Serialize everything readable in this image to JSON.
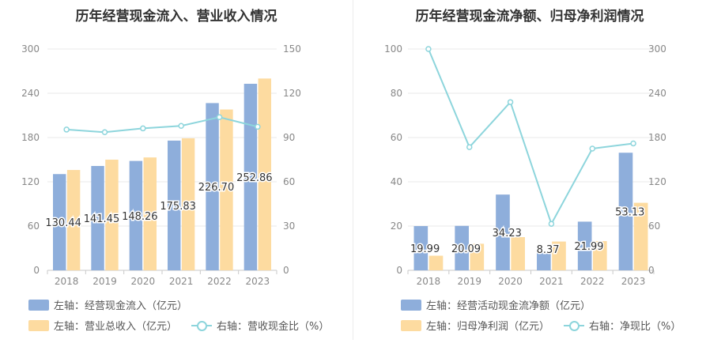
{
  "chart_data": [
    {
      "type": "bar",
      "title": "历年经营现金流入、营业收入情况",
      "categories": [
        "2018",
        "2019",
        "2020",
        "2021",
        "2022",
        "2023"
      ],
      "y_left": {
        "min": 0,
        "max": 300,
        "ticks": [
          0,
          60,
          120,
          180,
          240,
          300
        ]
      },
      "y_right": {
        "min": 0,
        "max": 150,
        "ticks": [
          0,
          30,
          60,
          90,
          120,
          150
        ]
      },
      "series": [
        {
          "name": "左轴：经营现金流入（亿元）",
          "type": "bar",
          "axis": "left",
          "color": "#8eaedb",
          "values": [
            130.44,
            141.45,
            148.26,
            175.83,
            226.7,
            252.86
          ],
          "labels": [
            "130.44",
            "141.45",
            "148.26",
            "175.83",
            "226.70",
            "252.86"
          ]
        },
        {
          "name": "左轴：营业总收入（亿元）",
          "type": "bar",
          "axis": "left",
          "color": "#fddba0",
          "values": [
            136,
            150,
            153,
            179,
            218,
            260
          ]
        },
        {
          "name": "右轴：营收现金比（%）",
          "type": "line",
          "axis": "right",
          "color": "#8dd5dc",
          "values": [
            95.4,
            93.6,
            96.2,
            97.9,
            103.8,
            97.3
          ]
        }
      ],
      "legend": {
        "rows": [
          [
            {
              "series": 0,
              "label": "左轴：经营现金流入（亿元）"
            }
          ],
          [
            {
              "series": 1,
              "label": "左轴：营业总收入（亿元）"
            },
            {
              "series": 2,
              "label": "右轴：营收现金比（%）"
            }
          ]
        ]
      },
      "grid": true
    },
    {
      "type": "bar",
      "title": "历年经营现金流净额、归母净利润情况",
      "categories": [
        "2018",
        "2019",
        "2020",
        "2021",
        "2022",
        "2023"
      ],
      "y_left": {
        "min": 0,
        "max": 100,
        "ticks": [
          0,
          20,
          40,
          60,
          80,
          100
        ]
      },
      "y_right": {
        "min": 0,
        "max": 300,
        "ticks": [
          0,
          60,
          120,
          180,
          240,
          300
        ]
      },
      "series": [
        {
          "name": "左轴：经营活动现金流净额（亿元）",
          "type": "bar",
          "axis": "left",
          "color": "#8eaedb",
          "values": [
            19.99,
            20.09,
            34.23,
            8.37,
            21.99,
            53.13
          ],
          "labels": [
            "19.99",
            "20.09",
            "34.23",
            "8.37",
            "21.99",
            "53.13"
          ]
        },
        {
          "name": "左轴：归母净利润（亿元）",
          "type": "bar",
          "axis": "left",
          "color": "#fddba0",
          "values": [
            6.6,
            12.0,
            15.0,
            13.0,
            13.2,
            30.5
          ]
        },
        {
          "name": "右轴：净现比（%）",
          "type": "line",
          "axis": "right",
          "color": "#8dd5dc",
          "values": [
            300,
            167,
            228,
            63,
            165,
            172
          ]
        }
      ],
      "legend": {
        "rows": [
          [
            {
              "series": 0,
              "label": "左轴：经营活动现金流净额（亿元）"
            }
          ],
          [
            {
              "series": 1,
              "label": "左轴：归母净利润（亿元）"
            },
            {
              "series": 2,
              "label": "右轴：净现比（%）"
            }
          ]
        ]
      },
      "grid": true
    }
  ]
}
